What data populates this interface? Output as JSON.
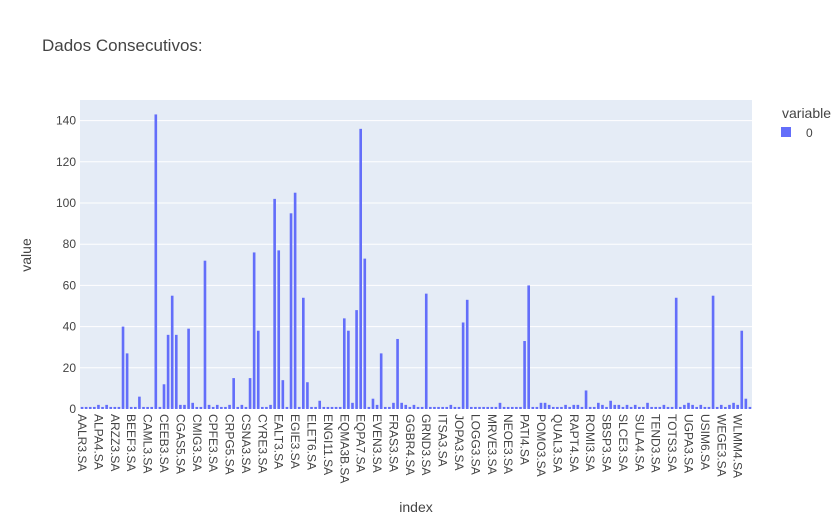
{
  "chart_data": {
    "type": "bar",
    "title": "Dados Consecutivos:",
    "xlabel": "index",
    "ylabel": "value",
    "legend_title": "variable",
    "categories": [
      "AALR3.SA",
      null,
      null,
      null,
      "ALPA4.SA",
      null,
      null,
      null,
      "ARZZ3.SA",
      null,
      null,
      null,
      "BEEF3.SA",
      null,
      null,
      null,
      "CAML3.SA",
      null,
      null,
      null,
      "CEEB3.SA",
      null,
      null,
      null,
      "CGAS5.SA",
      null,
      null,
      null,
      "CMIG3.SA",
      null,
      null,
      null,
      "CPFE3.SA",
      null,
      null,
      null,
      "CRPG5.SA",
      null,
      null,
      null,
      "CSNA3.SA",
      null,
      null,
      null,
      "CYRE3.SA",
      null,
      null,
      null,
      "EALT3.SA",
      null,
      null,
      null,
      "EGIE3.SA",
      null,
      null,
      null,
      "ELET6.SA",
      null,
      null,
      null,
      "ENGI11.SA",
      null,
      null,
      null,
      "EQMA3B.SA",
      null,
      null,
      null,
      "EQPA7.SA",
      null,
      null,
      null,
      "EVEN3.SA",
      null,
      null,
      null,
      "FRAS3.SA",
      null,
      null,
      null,
      "GGBR4.SA",
      null,
      null,
      null,
      "GRND3.SA",
      null,
      null,
      null,
      "ITSA3.SA",
      null,
      null,
      null,
      "JOPA3.SA",
      null,
      null,
      null,
      "LOGG3.SA",
      null,
      null,
      null,
      "MRVE3.SA",
      null,
      null,
      null,
      "NEOE3.SA",
      null,
      null,
      null,
      "PATI4.SA",
      null,
      null,
      null,
      "POMO3.SA",
      null,
      null,
      null,
      "QUAL3.SA",
      null,
      null,
      null,
      "RAPT4.SA",
      null,
      null,
      null,
      "ROMI3.SA",
      null,
      null,
      null,
      "SBSP3.SA",
      null,
      null,
      null,
      "SLCE3.SA",
      null,
      null,
      null,
      "SULA4.SA",
      null,
      null,
      null,
      "TEND3.SA",
      null,
      null,
      null,
      "TOTS3.SA",
      null,
      null,
      null,
      "UGPA3.SA",
      null,
      null,
      null,
      "USIM6.SA",
      null,
      null,
      null,
      "WEGE3.SA",
      null,
      null,
      null,
      "WLMM4.SA",
      null,
      null,
      null
    ],
    "series": [
      {
        "name": "0",
        "color": "#636efa",
        "values": [
          1,
          1,
          1,
          1,
          2,
          1,
          2,
          1,
          1,
          1,
          40,
          27,
          1,
          1,
          6,
          1,
          1,
          1,
          143,
          1,
          12,
          36,
          55,
          36,
          2,
          2,
          39,
          3,
          1,
          1,
          72,
          2,
          1,
          2,
          1,
          1,
          2,
          15,
          1,
          2,
          1,
          15,
          76,
          38,
          1,
          1,
          2,
          102,
          77,
          14,
          1,
          95,
          105,
          1,
          54,
          13,
          1,
          1,
          4,
          1,
          1,
          1,
          1,
          1,
          44,
          38,
          3,
          48,
          136,
          73,
          1,
          5,
          2,
          27,
          1,
          1,
          3,
          34,
          3,
          2,
          1,
          2,
          1,
          1,
          56,
          1,
          1,
          1,
          1,
          1,
          2,
          1,
          1,
          42,
          53,
          1,
          1,
          1,
          1,
          1,
          1,
          1,
          3,
          1,
          1,
          1,
          1,
          1,
          33,
          60,
          1,
          1,
          3,
          3,
          2,
          1,
          1,
          1,
          2,
          1,
          2,
          2,
          1,
          9,
          1,
          1,
          3,
          2,
          1,
          4,
          2,
          2,
          1,
          2,
          1,
          2,
          1,
          1,
          3,
          1,
          1,
          1,
          2,
          1,
          1,
          54,
          1,
          2,
          3,
          2,
          1,
          2,
          1,
          1,
          55,
          1,
          2,
          1,
          2,
          3,
          2,
          38,
          5,
          1
        ]
      }
    ],
    "ylim": [
      0,
      150
    ],
    "yticks": [
      0,
      20,
      40,
      60,
      80,
      100,
      120,
      140
    ],
    "grid": true
  }
}
